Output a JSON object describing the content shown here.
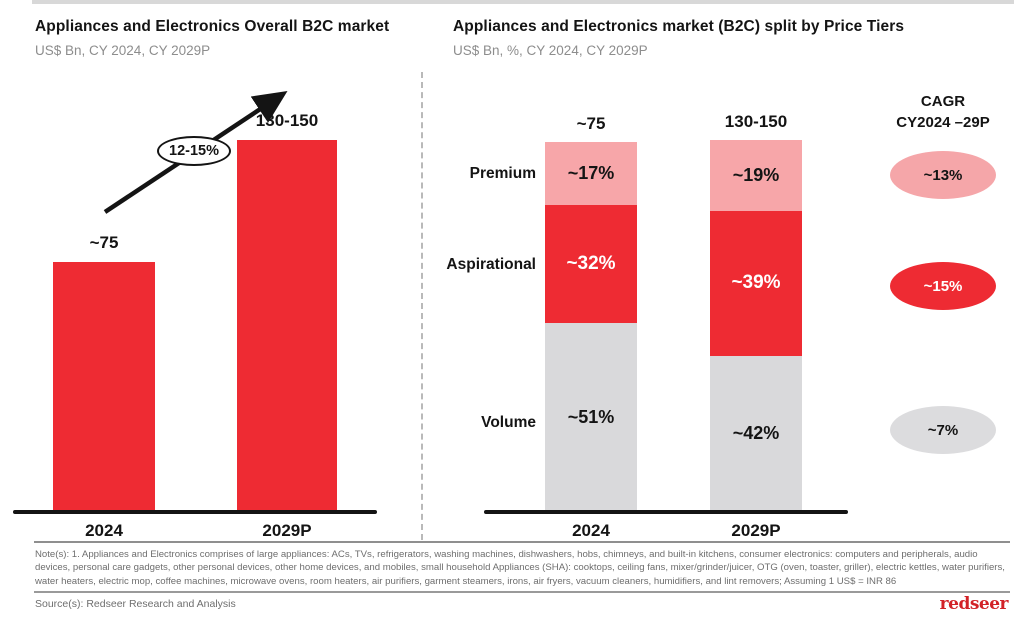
{
  "left_chart": {
    "title": "Appliances and Electronics Overall B2C market",
    "subtitle": "US$ Bn, CY 2024, CY 2029P",
    "growth_label": "12-15%",
    "bars": [
      {
        "category": "2024",
        "value_label": "~75"
      },
      {
        "category": "2029P",
        "value_label": "130-150"
      }
    ]
  },
  "right_chart": {
    "title": "Appliances and Electronics market (B2C) split by Price Tiers",
    "subtitle": "US$ Bn, %, CY 2024, CY 2029P",
    "tiers": [
      "Premium",
      "Aspirational",
      "Volume"
    ],
    "columns": [
      {
        "category": "2024",
        "total_label": "~75",
        "segments": [
          "~17%",
          "~32%",
          "~51%"
        ]
      },
      {
        "category": "2029P",
        "total_label": "130-150",
        "segments": [
          "~19%",
          "~39%",
          "~42%"
        ]
      }
    ],
    "cagr": {
      "header_line1": "CAGR",
      "header_line2": "CY2024 –29P",
      "items": [
        {
          "tier": "Premium",
          "label": "~13%"
        },
        {
          "tier": "Aspirational",
          "label": "~15%"
        },
        {
          "tier": "Volume",
          "label": "~7%"
        }
      ]
    }
  },
  "footer": {
    "note": "Note(s): 1. Appliances and Electronics comprises of large appliances: ACs, TVs, refrigerators, washing machines, dishwashers, hobs, chimneys, and built-in kitchens, consumer electronics: computers and peripherals, audio devices, personal care gadgets, other personal devices, other home devices, and mobiles, small household Appliances (SHA): cooktops, ceiling fans, mixer/grinder/juicer, OTG (oven, toaster, griller), electric kettles, water purifiers, water heaters, electric mop, coffee machines, microwave ovens, room heaters, air purifiers, garment steamers, irons, air fryers, vacuum cleaners, humidifiers, and lint removers; Assuming 1 US$ = INR 86",
    "source": "Source(s): Redseer Research and Analysis",
    "logo": "redseer"
  },
  "colors": {
    "bar_red": "#EE2B33",
    "tier_premium": "#F7A6A9",
    "tier_aspirational": "#EE2B33",
    "tier_volume": "#D9D9DB",
    "cagr_premium_bg": "#F5A6A9",
    "cagr_aspirational_bg": "#EE2B33",
    "cagr_volume_bg": "#DCDCDE",
    "logo_red": "#D22227",
    "text_dark": "#141414",
    "text_grey": "#8d8d8d"
  },
  "chart_data": [
    {
      "type": "bar",
      "title": "Appliances and Electronics Overall B2C market",
      "subtitle": "US$ Bn, CY 2024, CY 2029P",
      "categories": [
        "2024",
        "2029P"
      ],
      "values": [
        75,
        140
      ],
      "value_labels": [
        "~75",
        "130-150"
      ],
      "annotations": [
        "12-15% CAGR growth arrow between 2024 and 2029P"
      ],
      "ylim": [
        0,
        150
      ],
      "grid": false,
      "legend": false
    },
    {
      "type": "bar",
      "stacked": true,
      "title": "Appliances and Electronics market (B2C) split by Price Tiers",
      "subtitle": "US$ Bn, %, CY 2024, CY 2029P",
      "categories": [
        "2024",
        "2029P"
      ],
      "total_labels": [
        "~75",
        "130-150"
      ],
      "series": [
        {
          "name": "Premium",
          "values": [
            17,
            19
          ],
          "cagr_cy2024_29p": "~13%"
        },
        {
          "name": "Aspirational",
          "values": [
            32,
            39
          ],
          "cagr_cy2024_29p": "~15%"
        },
        {
          "name": "Volume",
          "values": [
            51,
            42
          ],
          "cagr_cy2024_29p": "~7%"
        }
      ],
      "value_suffix": "%",
      "cagr_header": "CAGR CY2024 –29P",
      "grid": false,
      "legend": "row labels left of bars"
    }
  ]
}
